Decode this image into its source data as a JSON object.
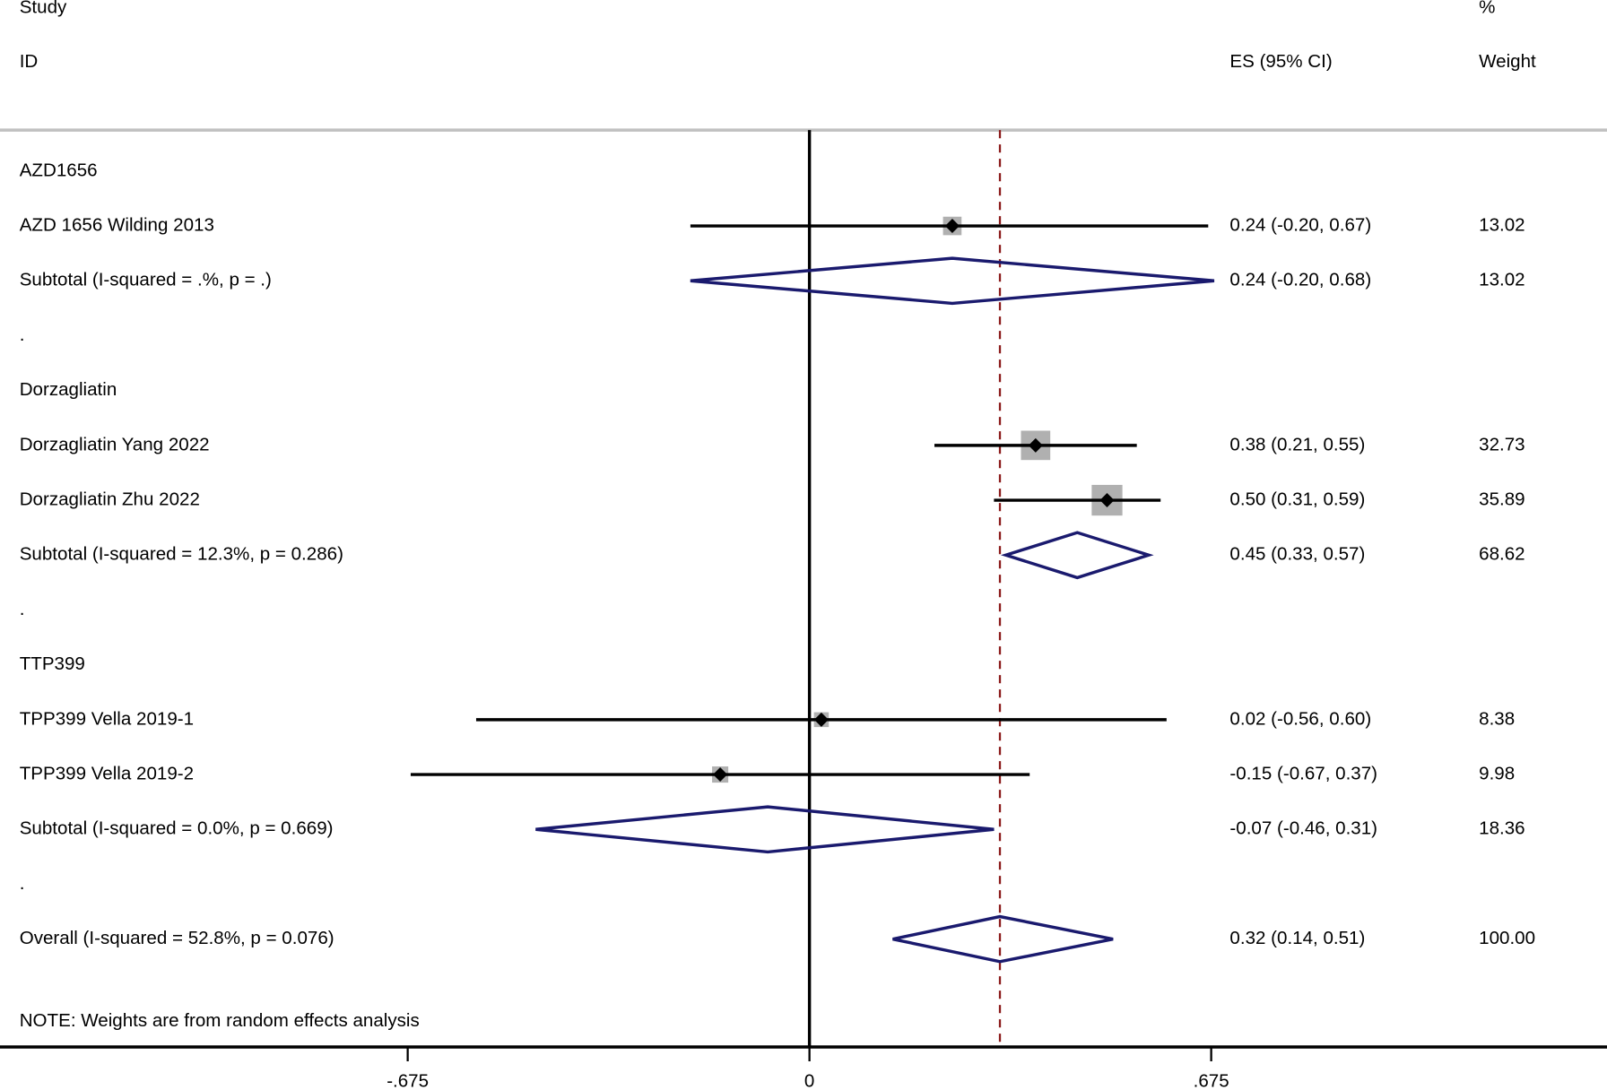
{
  "chart_data": {
    "type": "forest",
    "header": {
      "study": "Study",
      "id": "ID",
      "es": "ES (95% CI)",
      "pct": "%",
      "weight": "Weight"
    },
    "note": "NOTE: Weights are from random effects analysis",
    "xlim": [
      -1.36,
      1.34
    ],
    "xticks": [
      {
        "value": -0.675,
        "label": "-.675"
      },
      0,
      {
        "value": 0.675,
        "label": ".675"
      }
    ],
    "study_color": "#000000",
    "box_color": "#b0b0b0",
    "diamond_color": "#1a1a6e",
    "overall_line_color": "#8b1a1a",
    "rows": [
      {
        "kind": "group",
        "label": "AZD1656"
      },
      {
        "kind": "study",
        "label": "AZD 1656 Wilding 2013",
        "es": 0.24,
        "lo": -0.2,
        "hi": 0.67,
        "es_label": "0.24 (-0.20, 0.67)",
        "weight": 13.02,
        "weight_label": "13.02"
      },
      {
        "kind": "subtotal",
        "label": "Subtotal  (I-squared = .%, p = .)",
        "es": 0.24,
        "lo": -0.2,
        "hi": 0.68,
        "es_label": "0.24 (-0.20, 0.68)",
        "weight": 13.02,
        "weight_label": "13.02"
      },
      {
        "kind": "spacer",
        "label": "."
      },
      {
        "kind": "group",
        "label": "Dorzagliatin"
      },
      {
        "kind": "study",
        "label": "Dorzagliatin Yang 2022",
        "es": 0.38,
        "lo": 0.21,
        "hi": 0.55,
        "es_label": "0.38 (0.21, 0.55)",
        "weight": 32.73,
        "weight_label": "32.73"
      },
      {
        "kind": "study",
        "label": "Dorzagliatin Zhu 2022",
        "es": 0.5,
        "lo": 0.31,
        "hi": 0.59,
        "es_label": "0.50 (0.31, 0.59)",
        "weight": 35.89,
        "weight_label": "35.89"
      },
      {
        "kind": "subtotal",
        "label": "Subtotal  (I-squared = 12.3%, p = 0.286)",
        "es": 0.45,
        "lo": 0.33,
        "hi": 0.57,
        "es_label": "0.45 (0.33, 0.57)",
        "weight": 68.62,
        "weight_label": "68.62"
      },
      {
        "kind": "spacer",
        "label": "."
      },
      {
        "kind": "group",
        "label": "TTP399"
      },
      {
        "kind": "study",
        "label": "TPP399 Vella 2019-1",
        "es": 0.02,
        "lo": -0.56,
        "hi": 0.6,
        "es_label": "0.02 (-0.56, 0.60)",
        "weight": 8.38,
        "weight_label": "8.38"
      },
      {
        "kind": "study",
        "label": "TPP399 Vella 2019-2",
        "es": -0.15,
        "lo": -0.67,
        "hi": 0.37,
        "es_label": "-0.15 (-0.67, 0.37)",
        "weight": 9.98,
        "weight_label": "9.98"
      },
      {
        "kind": "subtotal",
        "label": "Subtotal  (I-squared = 0.0%, p = 0.669)",
        "es": -0.07,
        "lo": -0.46,
        "hi": 0.31,
        "es_label": "-0.07 (-0.46, 0.31)",
        "weight": 18.36,
        "weight_label": "18.36"
      },
      {
        "kind": "spacer",
        "label": "."
      },
      {
        "kind": "overall",
        "label": "Overall  (I-squared = 52.8%, p = 0.076)",
        "es": 0.32,
        "lo": 0.14,
        "hi": 0.51,
        "es_label": "0.32 (0.14, 0.51)",
        "weight": 100,
        "weight_label": "100.00"
      }
    ]
  }
}
